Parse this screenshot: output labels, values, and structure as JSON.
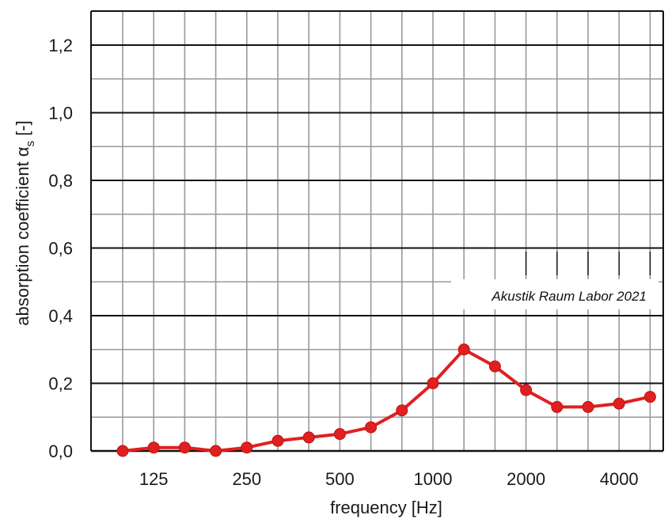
{
  "chart_data": {
    "type": "line",
    "title": "",
    "xlabel": "frequency [Hz]",
    "ylabel": "absorption coefficient α",
    "ylabel_subscript": "s",
    "ylabel_suffix": " [-]",
    "x_scale": "log",
    "x_tick_labels": [
      "125",
      "250",
      "500",
      "1000",
      "2000",
      "4000"
    ],
    "y_tick_labels": [
      "0,0",
      "0,2",
      "0,4",
      "0,6",
      "0,8",
      "1,0",
      "1,2"
    ],
    "ylim": [
      0,
      1.2
    ],
    "grid": true,
    "annotation": "Akustik Raum Labor 2021",
    "series": [
      {
        "x": [
          100,
          125,
          160,
          200,
          250,
          315,
          400,
          500,
          630,
          800,
          1000,
          1250,
          1600,
          2000,
          2500,
          3150,
          4000,
          5000
        ],
        "y": [
          0.0,
          0.01,
          0.01,
          0.0,
          0.01,
          0.03,
          0.04,
          0.05,
          0.07,
          0.12,
          0.2,
          0.3,
          0.25,
          0.18,
          0.13,
          0.13,
          0.14,
          0.16
        ]
      }
    ],
    "colors": {
      "line": "#e02020",
      "marker": "#e02020",
      "grid": "#999999",
      "major_grid": "#111111"
    }
  }
}
